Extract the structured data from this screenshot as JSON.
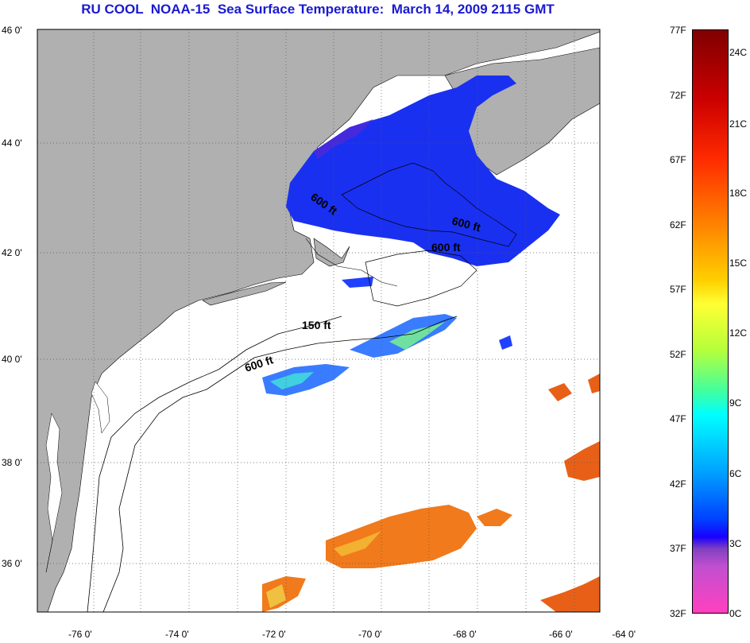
{
  "title": "RU COOL  NOAA-15  Sea Surface Temperature:  March 14, 2009 2115 GMT",
  "map": {
    "lat_labels": [
      "46 0'",
      "44 0'",
      "42 0'",
      "40 0'",
      "38 0'",
      "36 0'"
    ],
    "lon_labels": [
      "-76 0'",
      "-74 0'",
      "-72 0'",
      "-70 0'",
      "-68 0'",
      "-66 0'",
      "-64 0'"
    ],
    "contour_labels": [
      "600 ft",
      "600 ft",
      "600 ft",
      "150 ft",
      "600 ft"
    ],
    "colors": {
      "land": "#b0b0b0",
      "sst_cold": "#1428f0",
      "sst_warm": "#f07020"
    }
  },
  "colorbar": {
    "fahrenheit": [
      "77F",
      "72F",
      "67F",
      "62F",
      "57F",
      "52F",
      "47F",
      "42F",
      "37F",
      "32F"
    ],
    "celsius": [
      "24C",
      "21C",
      "18C",
      "15C",
      "12C",
      "9C",
      "6C",
      "3C",
      "0C"
    ]
  }
}
